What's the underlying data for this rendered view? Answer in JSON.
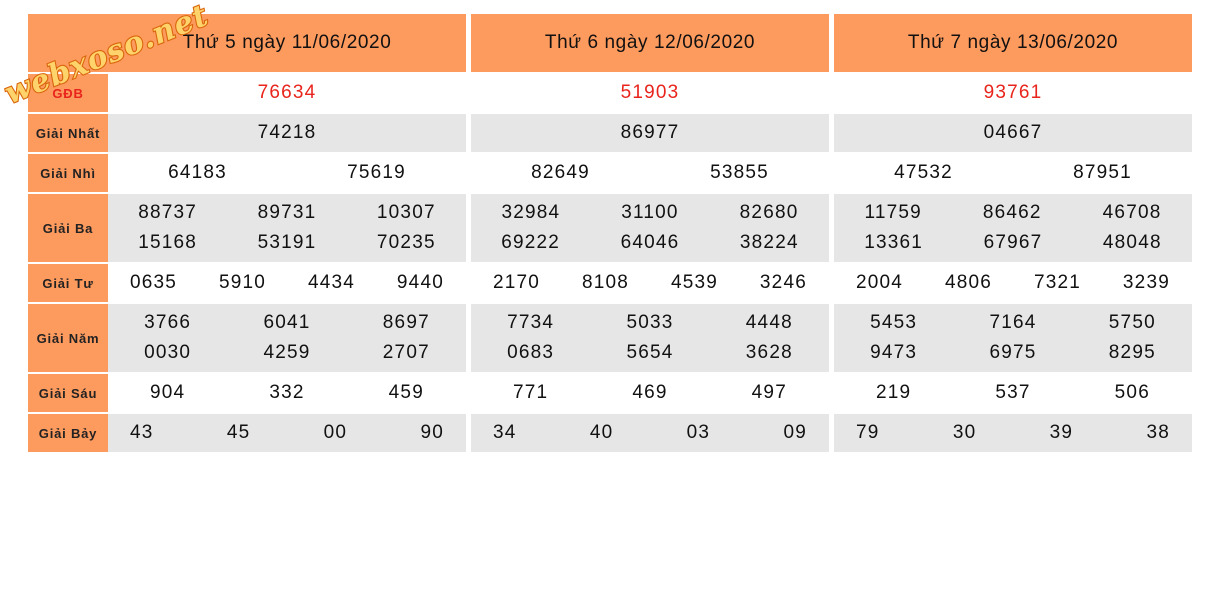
{
  "watermark": {
    "text": "webxoso.net",
    "fill": "#ffd36b",
    "stroke": "#d9660b"
  },
  "colors": {
    "header": "#fd9a5e",
    "row_alt": "#e6e6e6",
    "special": "#e8241c"
  },
  "labels": {
    "db": "GĐB",
    "nhat": "Giải Nhất",
    "nhi": "Giải Nhì",
    "ba": "Giải Ba",
    "tu": "Giải Tư",
    "nam": "Giải Năm",
    "sau": "Giải Sáu",
    "bay": "Giải Bảy"
  },
  "days": [
    {
      "title": "Thứ 5 ngày 11/06/2020",
      "db": [
        "76634"
      ],
      "nhat": [
        "74218"
      ],
      "nhi": [
        "64183",
        "75619"
      ],
      "ba": [
        "88737",
        "89731",
        "10307",
        "15168",
        "53191",
        "70235"
      ],
      "tu": [
        "0635",
        "5910",
        "4434",
        "9440"
      ],
      "nam": [
        "3766",
        "6041",
        "8697",
        "0030",
        "4259",
        "2707"
      ],
      "sau": [
        "904",
        "332",
        "459"
      ],
      "bay": [
        "43",
        "45",
        "00",
        "90"
      ]
    },
    {
      "title": "Thứ 6 ngày 12/06/2020",
      "db": [
        "51903"
      ],
      "nhat": [
        "86977"
      ],
      "nhi": [
        "82649",
        "53855"
      ],
      "ba": [
        "32984",
        "31100",
        "82680",
        "69222",
        "64046",
        "38224"
      ],
      "tu": [
        "2170",
        "8108",
        "4539",
        "3246"
      ],
      "nam": [
        "7734",
        "5033",
        "4448",
        "0683",
        "5654",
        "3628"
      ],
      "sau": [
        "771",
        "469",
        "497"
      ],
      "bay": [
        "34",
        "40",
        "03",
        "09"
      ]
    },
    {
      "title": "Thứ 7 ngày 13/06/2020",
      "db": [
        "93761"
      ],
      "nhat": [
        "04667"
      ],
      "nhi": [
        "47532",
        "87951"
      ],
      "ba": [
        "11759",
        "86462",
        "46708",
        "13361",
        "67967",
        "48048"
      ],
      "tu": [
        "2004",
        "4806",
        "7321",
        "3239"
      ],
      "nam": [
        "5453",
        "7164",
        "5750",
        "9473",
        "6975",
        "8295"
      ],
      "sau": [
        "219",
        "537",
        "506"
      ],
      "bay": [
        "79",
        "30",
        "39",
        "38"
      ]
    }
  ]
}
